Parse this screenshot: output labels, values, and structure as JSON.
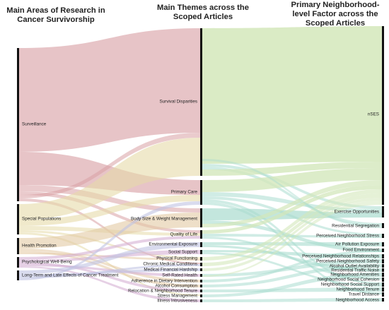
{
  "headers": {
    "left": "Main Areas of Research in Cancer Survivorship",
    "middle": "Main Themes across the Scoped Articles",
    "right": "Primary Neighborhood-level Factor across the Scoped Articles"
  },
  "diagram": {
    "type": "sankey",
    "columns": {
      "left": [
        "Surveillance",
        "Special Populations",
        "Health Promotion",
        "Psychological Well-Being",
        "Long-Term and Late Effects of Cancer Treatment"
      ],
      "middle": [
        "Survival Disparities",
        "Primary Care",
        "Body Size & Weight Management",
        "Quality of Life",
        "Environmental Exposure",
        "Social Support",
        "Physical Functioning",
        "Chronic Medical Conditions",
        "Medical Financial Hardship",
        "Self-Rated Health",
        "Adherence in Dietary Intervention",
        "Alcohol Consumption",
        "Relocation & Neighborhood Tenure",
        "Stress Management",
        "Illness Intrusiveness"
      ],
      "right": [
        "nSES",
        "Exercise Opportunities",
        "Residential Segregation",
        "Perceived Neighborhood Stress",
        "Air Pollution Exposure",
        "Food Environment",
        "Perceived Neighborhood Relationships",
        "Perceived Neighborhood Safety",
        "Alcohol Outlet Availability",
        "Residential Traffic Noise",
        "Neighborhood Amenities",
        "Neighborhood Social Cohesion",
        "Neighborhood Social Support",
        "Neighborhood Tenure",
        "Travel Distance",
        "Neighborhood Access"
      ]
    },
    "colors": {
      "surveillance": "#d9a0a4",
      "special_populations": "#e6dba8",
      "health_promotion": "#e3c9a3",
      "psych": "#d6b1d4",
      "long_term": "#bfc3e3",
      "nses": "#d3e7bb",
      "exercise": "#a9dccf",
      "node": "#111111"
    }
  }
}
